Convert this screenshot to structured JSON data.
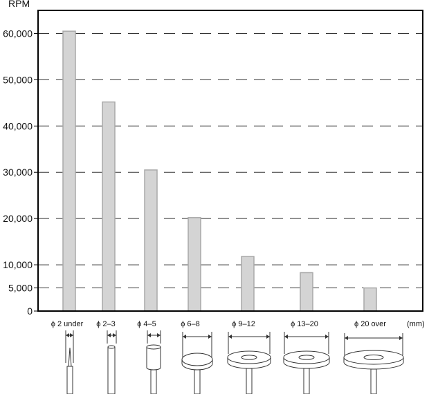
{
  "chart_data": {
    "type": "bar",
    "ylabel": "RPM",
    "xunit": "(mm)",
    "ylim": [
      0,
      65000
    ],
    "grid": "dashed horizontal",
    "yticks": [
      0,
      5000,
      10000,
      20000,
      30000,
      40000,
      50000,
      60000
    ],
    "ytick_labels": [
      "0",
      "5,000",
      "10,000",
      "20,000",
      "30,000",
      "40,000",
      "50,000",
      "60,000"
    ],
    "categories": [
      "2 under",
      "2–3",
      "4–5",
      "6–8",
      "9–12",
      "13–20",
      "20 over"
    ],
    "category_symbol": "ϕ",
    "values": [
      60500,
      45200,
      30500,
      20200,
      11800,
      8300,
      5000
    ],
    "colors": {
      "bar_fill": "#d4d4d4",
      "bar_stroke": "#a8a8a8",
      "axis": "#000000",
      "grid": "#333333"
    }
  }
}
